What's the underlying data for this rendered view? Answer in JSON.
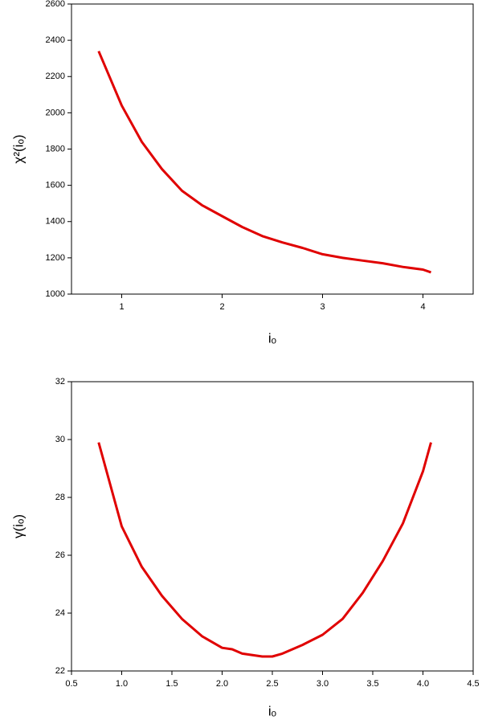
{
  "chart_data": [
    {
      "type": "line",
      "xlabel": "iₒ",
      "ylabel": "χ²(iₒ)",
      "x": [
        0.77,
        1.0,
        1.2,
        1.4,
        1.6,
        1.8,
        2.0,
        2.2,
        2.4,
        2.6,
        2.8,
        3.0,
        3.2,
        3.4,
        3.6,
        3.8,
        4.0,
        4.08
      ],
      "values": [
        2340,
        2040,
        1840,
        1690,
        1570,
        1490,
        1430,
        1370,
        1320,
        1285,
        1255,
        1220,
        1200,
        1185,
        1170,
        1150,
        1135,
        1120
      ],
      "color": "#e00000",
      "xlim": [
        0.5,
        4.5
      ],
      "xticks": [
        1,
        2,
        3,
        4
      ],
      "ylim": [
        1000,
        2600
      ],
      "yticks": [
        1000,
        1200,
        1400,
        1600,
        1800,
        2000,
        2200,
        2400,
        2600
      ]
    },
    {
      "type": "line",
      "xlabel": "iₒ",
      "ylabel": "γ(iₒ)",
      "x": [
        0.77,
        1.0,
        1.2,
        1.4,
        1.6,
        1.8,
        2.0,
        2.1,
        2.2,
        2.4,
        2.5,
        2.6,
        2.8,
        3.0,
        3.2,
        3.4,
        3.6,
        3.8,
        4.0,
        4.08
      ],
      "values": [
        29.9,
        27.0,
        25.6,
        24.6,
        23.8,
        23.2,
        22.8,
        22.75,
        22.6,
        22.5,
        22.5,
        22.6,
        22.9,
        23.25,
        23.8,
        24.7,
        25.8,
        27.1,
        28.9,
        29.9
      ],
      "color": "#e00000",
      "xlim": [
        0.5,
        4.5
      ],
      "xticks": [
        0.5,
        {
          "value": 1,
          "label": "1.0"
        },
        1.5,
        {
          "value": 2,
          "label": "2.0"
        },
        2.5,
        {
          "value": 3,
          "label": "3.0"
        },
        3.5,
        {
          "value": 4,
          "label": "4.0"
        },
        4.5
      ],
      "ylim": [
        22,
        32
      ],
      "yticks": [
        22,
        24,
        26,
        28,
        30,
        32
      ]
    }
  ]
}
